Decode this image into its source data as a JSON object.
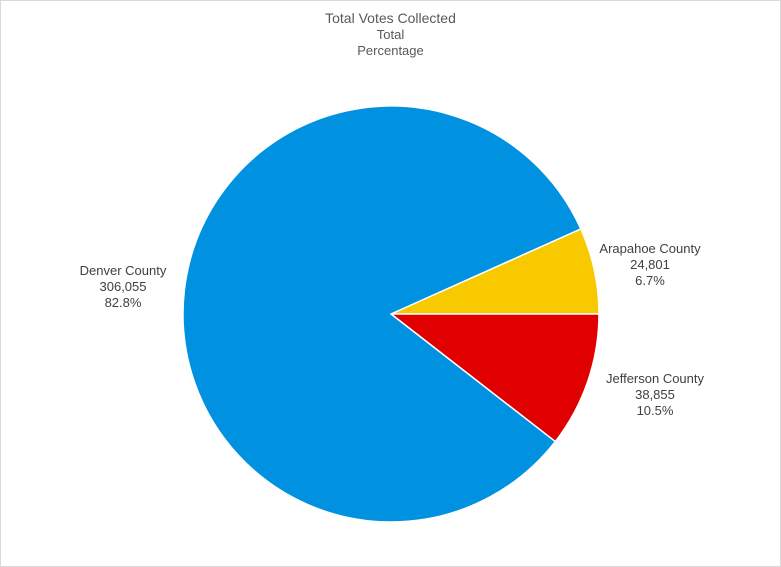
{
  "chart_data": {
    "type": "pie",
    "title": "Total Votes Collected",
    "subtitles": [
      "Total",
      "Percentage"
    ],
    "slices": [
      {
        "label": "Arapahoe County",
        "value": 24801,
        "value_text": "24,801",
        "percent_text": "6.7%",
        "color": "#f9c900"
      },
      {
        "label": "Jefferson County",
        "value": 38855,
        "value_text": "38,855",
        "percent_text": "10.5%",
        "color": "#e00000"
      },
      {
        "label": "Denver County",
        "value": 306055,
        "value_text": "306,055",
        "percent_text": "82.8%",
        "color": "#0092e0"
      }
    ],
    "legend": "none",
    "start_angle_deg": 0
  }
}
